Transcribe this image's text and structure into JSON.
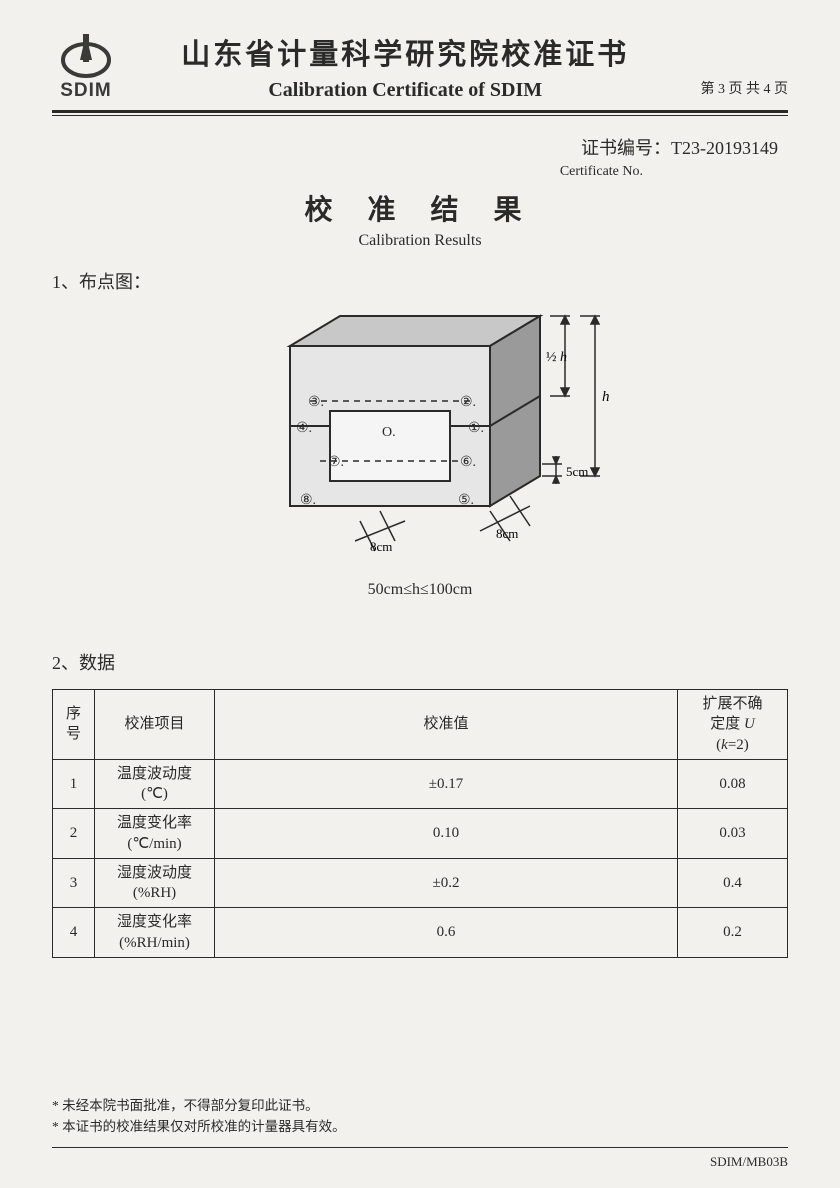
{
  "header": {
    "logo_text": "SDIM",
    "title_cn": "山东省计量科学研究院校准证书",
    "title_en": "Calibration Certificate of SDIM",
    "page_info": "第 3 页 共 4 页"
  },
  "certificate": {
    "label_cn": "证书编号：",
    "number": "T23-20193149",
    "label_en": "Certificate No."
  },
  "results": {
    "title_cn": "校 准 结 果",
    "title_en": "Calibration Results"
  },
  "section1": {
    "heading": "1、布点图：",
    "diagram": {
      "type": "3d-box-schematic",
      "points": [
        "①",
        "②",
        "③",
        "④",
        "⑤",
        "⑥",
        "⑦",
        "⑧",
        "O"
      ],
      "dim_labels": {
        "half_h": "½ h",
        "h": "h",
        "bottom_offset": "5cm",
        "side_offset_left": "8cm",
        "side_offset_right": "8cm"
      },
      "caption": "50cm≤h≤100cm",
      "stroke": "#2a2a2a",
      "fill_top": "#c8c8c8",
      "fill_side": "#9a9a9a",
      "fill_front": "#e6e6e6",
      "inner_fill": "#f5f5f5"
    }
  },
  "section2": {
    "heading": "2、数据",
    "table": {
      "columns": [
        "序号",
        "校准项目",
        "校准值",
        "扩展不确定度 U (k=2)"
      ],
      "header_cells": {
        "c0": "序\n号",
        "c1": "校准项目",
        "c2": "校准值",
        "c3_line1": "扩展不确",
        "c3_line2": "定度 U",
        "c3_line3": "(k=2)"
      },
      "rows": [
        {
          "idx": "1",
          "item_l1": "温度波动度",
          "item_l2": "(℃)",
          "value": "±0.17",
          "unc": "0.08"
        },
        {
          "idx": "2",
          "item_l1": "温度变化率",
          "item_l2": "(℃/min)",
          "value": "0.10",
          "unc": "0.03"
        },
        {
          "idx": "3",
          "item_l1": "湿度波动度",
          "item_l2": "(%RH)",
          "value": "±0.2",
          "unc": "0.4"
        },
        {
          "idx": "4",
          "item_l1": "湿度变化率",
          "item_l2": "(%RH/min)",
          "value": "0.6",
          "unc": "0.2"
        }
      ]
    }
  },
  "footer": {
    "note1": "* 未经本院书面批准，不得部分复印此证书。",
    "note2": "* 本证书的校准结果仅对所校准的计量器具有效。",
    "code": "SDIM/MB03B"
  }
}
